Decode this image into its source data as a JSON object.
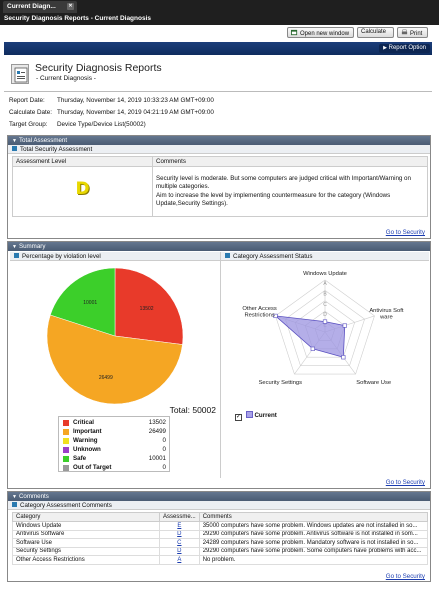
{
  "tab": {
    "label": "Current Diagn..."
  },
  "window": {
    "title": "Security Diagnosis Reports - Current Diagnosis"
  },
  "toolbar": {
    "open_new_window": "Open new window",
    "calculate": "Calculate",
    "print": "Print",
    "report_option": "Report Option"
  },
  "header": {
    "title": "Security Diagnosis Reports",
    "subtitle": "- Current Diagnosis -"
  },
  "info": {
    "report_date_label": "Report Date:",
    "report_date": "Thursday, November 14, 2019 10:33:23 AM GMT+09:00",
    "calc_date_label": "Calculate Date:",
    "calc_date": "Thursday, November 14, 2019 04:21:19 AM GMT+09:00",
    "target_label": "Target Group:",
    "target": "Device Type/Device List(50002)"
  },
  "total": {
    "panel_title": "Total Assessment",
    "section_title": "Total Security Assessment",
    "col_level": "Assessment Level",
    "col_comments": "Comments",
    "grade": "D",
    "comment_1": "Security level is moderate. But some computers are judged critical with Important/Warning on multiple categories.",
    "comment_2": "Aim to increase the level by implementing countermeasure for the category (Windows Update,Security Settings).",
    "link": "Go to Security"
  },
  "summary": {
    "panel_title": "Summary",
    "pie_section_title": "Percentage by violation level",
    "radar_section_title": "Category Assessment Status",
    "total_label": "Total: 50002",
    "link": "Go to Security",
    "legend": [
      {
        "name": "Critical",
        "value": "13502",
        "color": "#e83a2a"
      },
      {
        "name": "Important",
        "value": "26499",
        "color": "#f5a623"
      },
      {
        "name": "Warning",
        "value": "0",
        "color": "#f0e020"
      },
      {
        "name": "Unknown",
        "value": "0",
        "color": "#9b3fc9"
      },
      {
        "name": "Safe",
        "value": "10001",
        "color": "#3ccf2a"
      },
      {
        "name": "Out of Target",
        "value": "0",
        "color": "#999999"
      }
    ],
    "radar_legend": "Current",
    "radar_axes": [
      "Windows Update",
      "Antivirus Soft ware",
      "Software Use",
      "Security Settings",
      "Other Access Restrictions"
    ],
    "radar_grades": [
      "A",
      "B",
      "C",
      "D",
      "E"
    ]
  },
  "chart_data": [
    {
      "type": "pie",
      "title": "Percentage by violation level",
      "categories": [
        "Critical",
        "Important",
        "Warning",
        "Unknown",
        "Safe",
        "Out of Target"
      ],
      "values": [
        13502,
        26499,
        0,
        0,
        10001,
        0
      ],
      "total": 50002
    },
    {
      "type": "radar",
      "title": "Category Assessment Status",
      "categories": [
        "Windows Update",
        "Antivirus Software",
        "Software Use",
        "Security Settings",
        "Other Access Restrictions"
      ],
      "scale": [
        "A",
        "B",
        "C",
        "D",
        "E"
      ],
      "series": [
        {
          "name": "Current",
          "values": [
            "E",
            "D",
            "C",
            "D",
            "A"
          ]
        }
      ]
    }
  ],
  "comments": {
    "panel_title": "Comments",
    "section_title": "Category Assessment Comments",
    "col_category": "Category",
    "col_assessment": "Assessme...",
    "col_comments": "Comments",
    "rows": [
      {
        "category": "Windows Update",
        "grade": "E",
        "comment": "35000 computers have some problem. Windows updates are not installed in so..."
      },
      {
        "category": "Antivirus Software",
        "grade": "D",
        "comment": "29290 computers have some problem. Antivirus software is not installed in som..."
      },
      {
        "category": "Software Use",
        "grade": "C",
        "comment": "24289 computers have some problem. Mandatory software is not installed in so..."
      },
      {
        "category": "Security Settings",
        "grade": "D",
        "comment": "29290 computers have some problem. Some computers have problems with acc..."
      },
      {
        "category": "Other Access Restrictions",
        "grade": "A",
        "comment": "No problem."
      }
    ],
    "link": "Go to Security"
  }
}
